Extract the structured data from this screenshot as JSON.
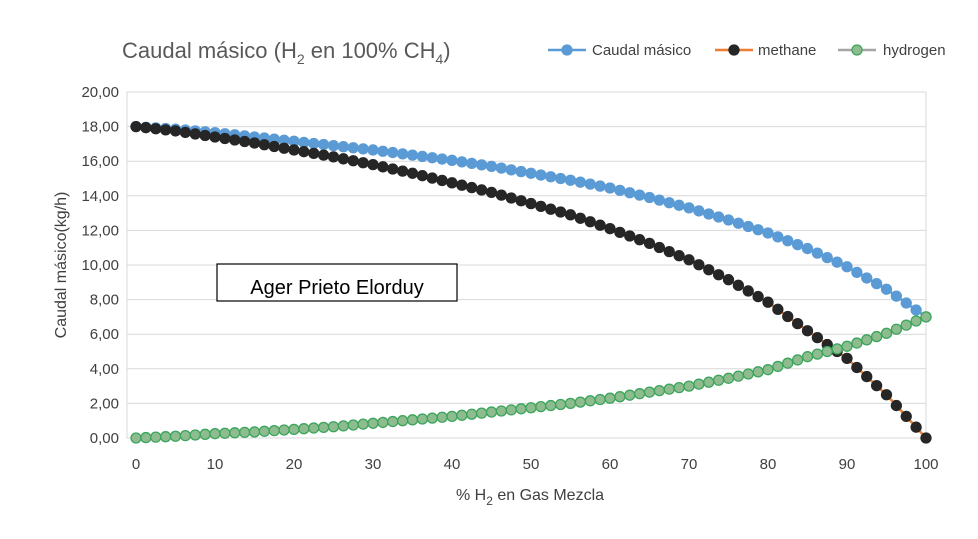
{
  "chart_data": {
    "type": "line",
    "title": {
      "text": "Caudal másico (H",
      "sub": "2",
      "mid": " en 100% CH",
      "sub2": "4",
      "end": ")"
    },
    "xlabel": {
      "text": "% H",
      "sub": "2",
      "end": " en Gas Mezcla"
    },
    "ylabel": "Caudal másico(kg/h)",
    "xlim": [
      0,
      100
    ],
    "ylim": [
      0,
      20
    ],
    "x_ticks": [
      "0",
      "10",
      "20",
      "30",
      "40",
      "50",
      "60",
      "70",
      "80",
      "90",
      "100"
    ],
    "y_ticks": [
      "0,00",
      "2,00",
      "4,00",
      "6,00",
      "8,00",
      "10,00",
      "12,00",
      "14,00",
      "16,00",
      "18,00",
      "20,00"
    ],
    "grid": "horizontal",
    "legend": "top-right",
    "annotation": "Ager Prieto Elorduy",
    "series": [
      {
        "name": "Caudal másico",
        "line_color": "#5B9BD5",
        "marker_color": "#5B9BD5",
        "marker_edge": "#5B9BD5",
        "x": [
          0,
          5,
          10,
          15,
          20,
          25,
          30,
          35,
          40,
          45,
          50,
          55,
          60,
          65,
          70,
          75,
          80,
          85,
          90,
          95,
          100
        ],
        "y": [
          18.0,
          17.85,
          17.65,
          17.4,
          17.15,
          16.9,
          16.65,
          16.35,
          16.05,
          15.7,
          15.3,
          14.9,
          14.45,
          13.9,
          13.3,
          12.6,
          11.85,
          10.95,
          9.9,
          8.6,
          7.0
        ]
      },
      {
        "name": "methane",
        "line_color": "#ED7D31",
        "marker_color": "#262626",
        "marker_edge": "#262626",
        "x": [
          0,
          5,
          10,
          15,
          20,
          25,
          30,
          35,
          40,
          45,
          50,
          55,
          60,
          65,
          70,
          75,
          80,
          85,
          90,
          95,
          100
        ],
        "y": [
          18.0,
          17.75,
          17.4,
          17.05,
          16.65,
          16.25,
          15.8,
          15.3,
          14.75,
          14.2,
          13.55,
          12.9,
          12.1,
          11.25,
          10.3,
          9.15,
          7.85,
          6.2,
          4.6,
          2.5,
          0.0
        ]
      },
      {
        "name": "hydrogen",
        "line_color": "#A5A5A5",
        "marker_color": "#8FBC8F",
        "marker_edge": "#3BA55C",
        "x": [
          0,
          5,
          10,
          15,
          20,
          25,
          30,
          35,
          40,
          45,
          50,
          55,
          60,
          65,
          70,
          75,
          80,
          85,
          90,
          95,
          100
        ],
        "y": [
          0.0,
          0.1,
          0.25,
          0.35,
          0.5,
          0.65,
          0.85,
          1.05,
          1.25,
          1.5,
          1.75,
          2.0,
          2.3,
          2.65,
          3.0,
          3.45,
          3.95,
          4.7,
          5.3,
          6.05,
          7.0
        ]
      }
    ]
  }
}
